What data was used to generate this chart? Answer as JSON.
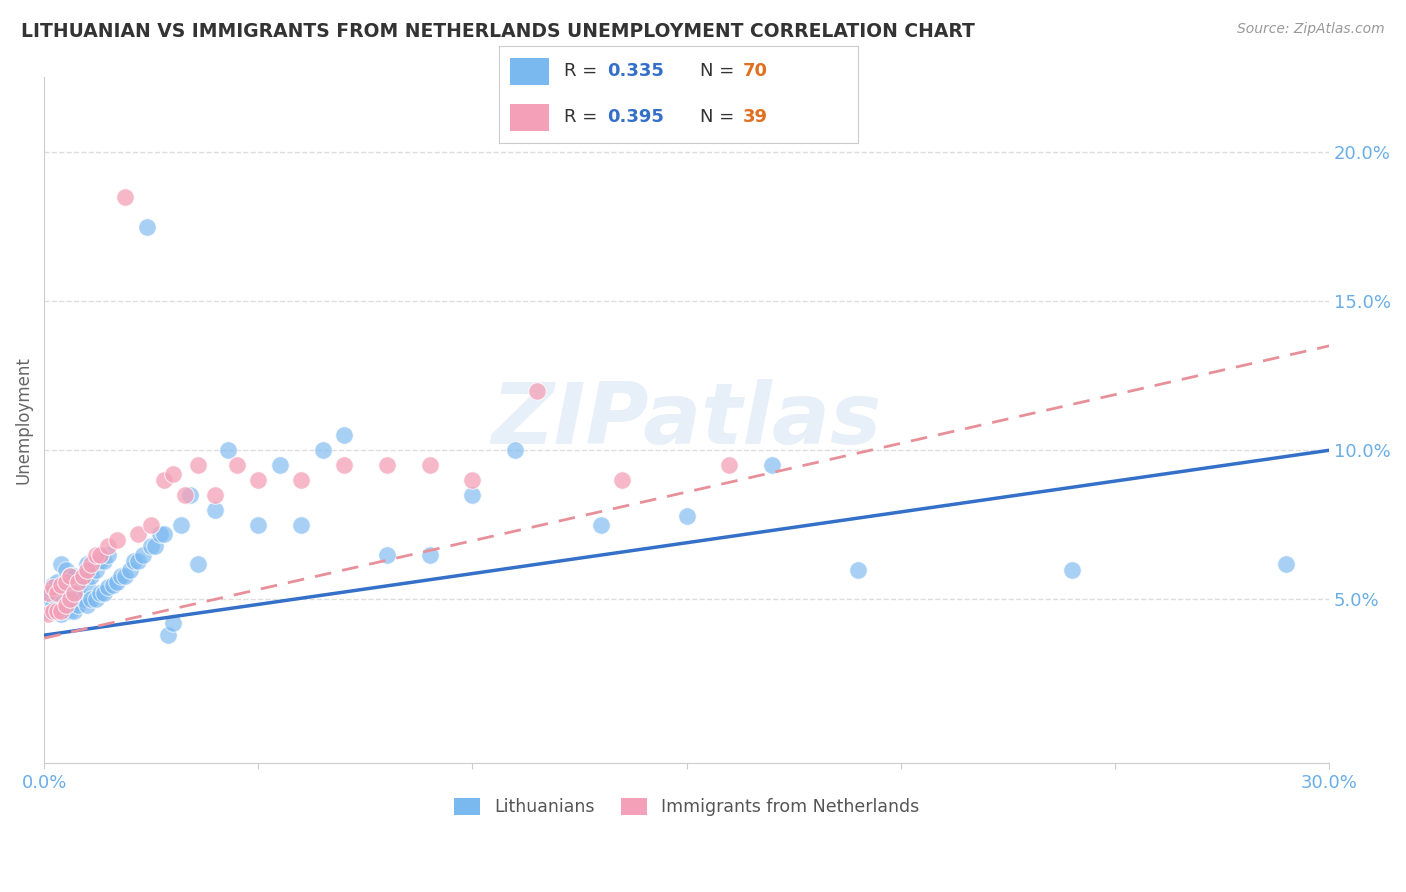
{
  "title": "LITHUANIAN VS IMMIGRANTS FROM NETHERLANDS UNEMPLOYMENT CORRELATION CHART",
  "source": "Source: ZipAtlas.com",
  "ylabel": "Unemployment",
  "xlim": [
    0.0,
    0.3
  ],
  "ylim": [
    -0.005,
    0.225
  ],
  "xticks": [
    0.0,
    0.05,
    0.1,
    0.15,
    0.2,
    0.25,
    0.3
  ],
  "yticks_right": [
    0.05,
    0.1,
    0.15,
    0.2
  ],
  "blue_color": "#7ab8f0",
  "pink_color": "#f4a0b8",
  "blue_line_color": "#3570c8",
  "pink_line_color": "#e8909a",
  "blue_r": 0.335,
  "blue_n": 70,
  "pink_r": 0.395,
  "pink_n": 39,
  "watermark": "ZIPatlas",
  "background_color": "#ffffff",
  "grid_color": "#dddddd",
  "title_color": "#333333",
  "axis_label_color": "#6aaee8",
  "blue_scatter_x": [
    0.001,
    0.001,
    0.002,
    0.002,
    0.003,
    0.003,
    0.003,
    0.004,
    0.004,
    0.005,
    0.005,
    0.005,
    0.006,
    0.006,
    0.006,
    0.007,
    0.007,
    0.007,
    0.008,
    0.008,
    0.009,
    0.009,
    0.01,
    0.01,
    0.01,
    0.011,
    0.011,
    0.012,
    0.012,
    0.013,
    0.013,
    0.014,
    0.014,
    0.015,
    0.015,
    0.016,
    0.017,
    0.018,
    0.019,
    0.02,
    0.021,
    0.022,
    0.023,
    0.024,
    0.025,
    0.026,
    0.027,
    0.028,
    0.029,
    0.03,
    0.032,
    0.034,
    0.036,
    0.04,
    0.043,
    0.05,
    0.055,
    0.06,
    0.065,
    0.07,
    0.08,
    0.09,
    0.1,
    0.11,
    0.13,
    0.15,
    0.17,
    0.19,
    0.24,
    0.29
  ],
  "blue_scatter_y": [
    0.046,
    0.051,
    0.048,
    0.055,
    0.046,
    0.05,
    0.056,
    0.045,
    0.062,
    0.048,
    0.053,
    0.06,
    0.046,
    0.052,
    0.058,
    0.046,
    0.052,
    0.058,
    0.048,
    0.054,
    0.05,
    0.058,
    0.048,
    0.055,
    0.062,
    0.05,
    0.058,
    0.05,
    0.06,
    0.052,
    0.063,
    0.052,
    0.063,
    0.054,
    0.065,
    0.055,
    0.056,
    0.058,
    0.058,
    0.06,
    0.063,
    0.063,
    0.065,
    0.175,
    0.068,
    0.068,
    0.072,
    0.072,
    0.038,
    0.042,
    0.075,
    0.085,
    0.062,
    0.08,
    0.1,
    0.075,
    0.095,
    0.075,
    0.1,
    0.105,
    0.065,
    0.065,
    0.085,
    0.1,
    0.075,
    0.078,
    0.095,
    0.06,
    0.06,
    0.062
  ],
  "pink_scatter_x": [
    0.001,
    0.001,
    0.002,
    0.002,
    0.003,
    0.003,
    0.004,
    0.004,
    0.005,
    0.005,
    0.006,
    0.006,
    0.007,
    0.008,
    0.009,
    0.01,
    0.011,
    0.012,
    0.013,
    0.015,
    0.017,
    0.019,
    0.022,
    0.025,
    0.028,
    0.03,
    0.033,
    0.036,
    0.04,
    0.045,
    0.05,
    0.06,
    0.07,
    0.08,
    0.09,
    0.1,
    0.115,
    0.135,
    0.16
  ],
  "pink_scatter_y": [
    0.045,
    0.052,
    0.046,
    0.054,
    0.046,
    0.052,
    0.046,
    0.055,
    0.048,
    0.056,
    0.05,
    0.058,
    0.052,
    0.056,
    0.058,
    0.06,
    0.062,
    0.065,
    0.065,
    0.068,
    0.07,
    0.185,
    0.072,
    0.075,
    0.09,
    0.092,
    0.085,
    0.095,
    0.085,
    0.095,
    0.09,
    0.09,
    0.095,
    0.095,
    0.095,
    0.09,
    0.12,
    0.09,
    0.095
  ]
}
